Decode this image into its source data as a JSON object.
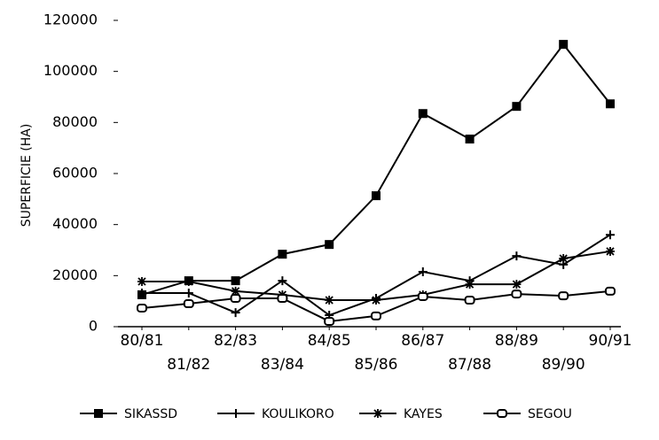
{
  "chart_data": {
    "type": "line",
    "ylabel": "SUPERFICIE (HA)",
    "categories": [
      "80/81",
      "81/82",
      "82/83",
      "83/84",
      "84/85",
      "85/86",
      "86/87",
      "87/88",
      "88/89",
      "89/90",
      "90/91"
    ],
    "ylim": [
      0,
      120000
    ],
    "yticks": [
      0,
      20000,
      40000,
      60000,
      80000,
      100000,
      120000
    ],
    "series": [
      {
        "name": "SIKASSD",
        "color": "#000000",
        "marker": "filled-square",
        "values": [
          12500,
          18000,
          18000,
          28400,
          32200,
          51300,
          83500,
          73500,
          86300,
          110600,
          87300
        ]
      },
      {
        "name": "KOULIKORO",
        "color": "#000000",
        "marker": "plus",
        "values": [
          13200,
          13200,
          5500,
          18000,
          4500,
          11100,
          21500,
          18000,
          27700,
          24300,
          36000
        ]
      },
      {
        "name": "KAYES",
        "color": "#000000",
        "marker": "asterisk",
        "values": [
          17700,
          17700,
          13900,
          12500,
          10400,
          10400,
          12500,
          16600,
          16600,
          26700,
          29500
        ]
      },
      {
        "name": "SEGOU",
        "color": "#000000",
        "marker": "open-square",
        "values": [
          7300,
          9000,
          11100,
          11100,
          2100,
          4200,
          11800,
          10400,
          12800,
          12100,
          13900
        ]
      }
    ]
  }
}
